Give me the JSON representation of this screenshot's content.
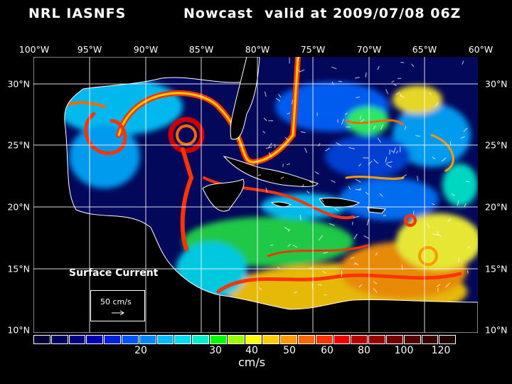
{
  "header": {
    "left": "NRL IASNFS",
    "middle": "Nowcast",
    "right": "valid at 2009/07/08 06Z"
  },
  "axes": {
    "lon_labels": [
      "100°W",
      "95°W",
      "90°W",
      "85°W",
      "80°W",
      "75°W",
      "70°W",
      "65°W",
      "60°W"
    ],
    "lat_labels": [
      "30°N",
      "25°N",
      "20°N",
      "15°N",
      "10°N"
    ]
  },
  "legend": {
    "title": "Surface Current",
    "vector_label": "50 cm/s"
  },
  "colorbar": {
    "colors": [
      "#000034",
      "#00005e",
      "#000088",
      "#0000b4",
      "#0020e0",
      "#0055ff",
      "#0088ff",
      "#00bbff",
      "#00ddee",
      "#00eecc",
      "#00ff00",
      "#99ff00",
      "#ffff00",
      "#ffcc00",
      "#ff9900",
      "#ff6600",
      "#ff3300",
      "#ee0000",
      "#bb0000",
      "#990000",
      "#770000",
      "#550000",
      "#3a0000",
      "#220000"
    ],
    "labels": [
      "20",
      "30",
      "40",
      "50",
      "60",
      "80",
      "100",
      "120"
    ],
    "unit": "cm/s"
  },
  "map": {
    "land_color": "#000000",
    "ocean_low_color": "#04085a",
    "coast_color": "#ffffff"
  }
}
